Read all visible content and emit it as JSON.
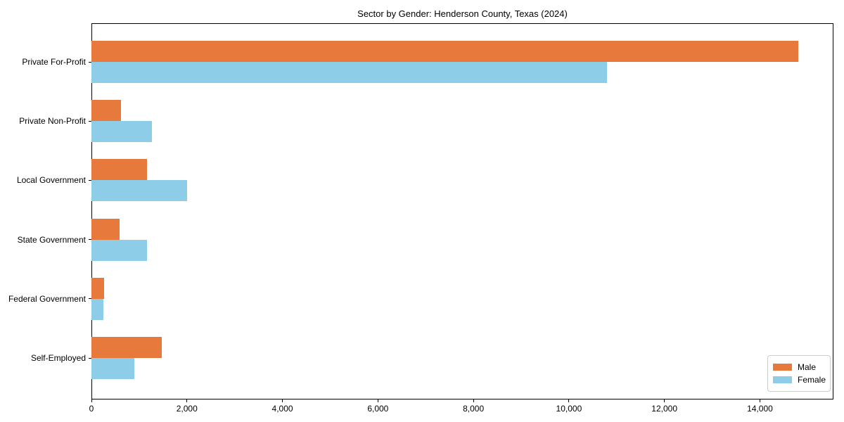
{
  "chart_data": {
    "type": "bar",
    "orientation": "horizontal",
    "title": "Sector by Gender: Henderson County, Texas (2024)",
    "categories": [
      "Private For-Profit",
      "Private Non-Profit",
      "Local Government",
      "State Government",
      "Federal Government",
      "Self-Employed"
    ],
    "series": [
      {
        "name": "Male",
        "color": "#e8793c",
        "values": [
          14800,
          620,
          1170,
          590,
          260,
          1480
        ]
      },
      {
        "name": "Female",
        "color": "#8ecde8",
        "values": [
          10800,
          1260,
          2000,
          1160,
          245,
          900
        ]
      }
    ],
    "xlabel": "",
    "ylabel": "",
    "xlim": [
      0,
      15540
    ],
    "xticks": [
      0,
      2000,
      4000,
      6000,
      8000,
      10000,
      12000,
      14000
    ],
    "xtick_labels": [
      "0",
      "2,000",
      "4,000",
      "6,000",
      "8,000",
      "10,000",
      "12,000",
      "14,000"
    ],
    "grid": false,
    "legend_position": "lower right",
    "legend_labels": [
      "Male",
      "Female"
    ],
    "colors": {
      "male": "#e8793c",
      "female": "#8ecde8",
      "spine": "#000000",
      "background": "#ffffff"
    }
  }
}
